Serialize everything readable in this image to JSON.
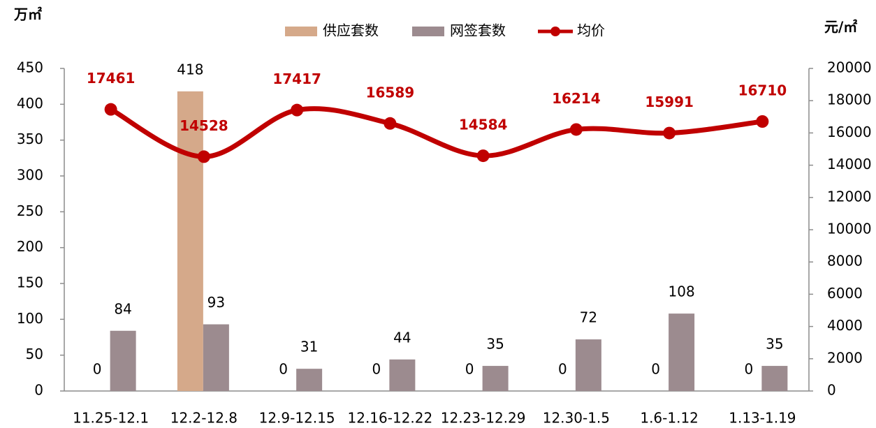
{
  "chart_data": {
    "type": "bar-line",
    "y_label": "万㎡",
    "y2_label": "元/㎡",
    "categories": [
      "11.25-12.1",
      "12.2-12.8",
      "12.9-12.15",
      "12.16-12.22",
      "12.23-12.29",
      "12.30-1.5",
      "1.6-1.12",
      "1.13-1.19"
    ],
    "series": [
      {
        "name": "供应套数",
        "type": "bar",
        "color": "#d5a98a",
        "values": [
          0,
          418,
          0,
          0,
          0,
          0,
          0,
          0
        ]
      },
      {
        "name": "网签套数",
        "type": "bar",
        "color": "#9c8b8f",
        "values": [
          84,
          93,
          31,
          44,
          35,
          72,
          108,
          35
        ]
      },
      {
        "name": "均价",
        "type": "line",
        "axis": "y2",
        "color": "#c00000",
        "values": [
          17461,
          14528,
          17417,
          16589,
          14584,
          16214,
          15991,
          16710
        ]
      }
    ],
    "ylim": [
      0,
      450
    ],
    "yticks": [
      0,
      50,
      100,
      150,
      200,
      250,
      300,
      350,
      400,
      450
    ],
    "y2lim": [
      0,
      20000
    ],
    "y2ticks": [
      0,
      2000,
      4000,
      6000,
      8000,
      10000,
      12000,
      14000,
      16000,
      18000,
      20000
    ],
    "grid": false,
    "legend": "top"
  }
}
